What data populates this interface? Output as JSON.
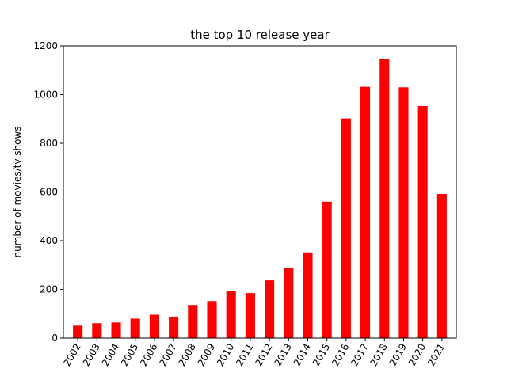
{
  "chart_data": {
    "type": "bar",
    "title": "the top 10 release year",
    "xlabel": "",
    "ylabel": "number of movies/tv shows",
    "categories": [
      "2002",
      "2003",
      "2004",
      "2005",
      "2006",
      "2007",
      "2008",
      "2009",
      "2010",
      "2011",
      "2012",
      "2013",
      "2014",
      "2015",
      "2016",
      "2017",
      "2018",
      "2019",
      "2020",
      "2021"
    ],
    "values": [
      51,
      61,
      64,
      80,
      96,
      88,
      136,
      152,
      194,
      185,
      237,
      288,
      352,
      560,
      902,
      1032,
      1147,
      1030,
      953,
      592
    ],
    "ylim": [
      0,
      1200
    ],
    "yticks": [
      0,
      200,
      400,
      600,
      800,
      1000,
      1200
    ],
    "bar_color": "#ff0000",
    "grid": false,
    "legend": false
  }
}
